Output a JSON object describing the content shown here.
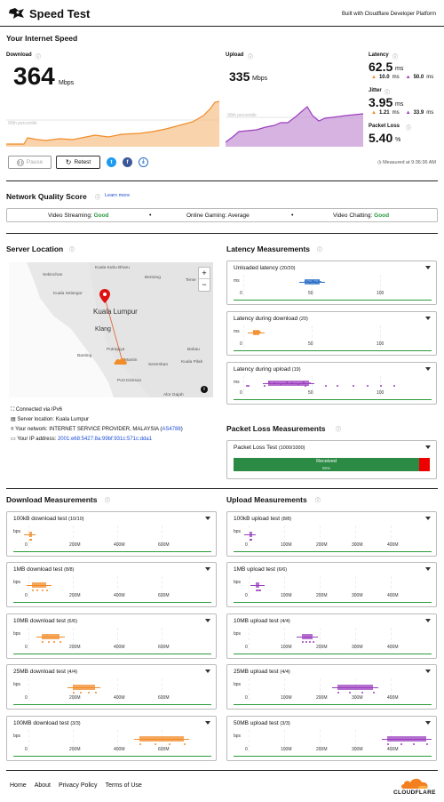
{
  "app": {
    "title": "Speed Test",
    "built_with": "Built with Cloudflare Developer Platform"
  },
  "speed": {
    "section_title": "Your Internet Speed",
    "download_label": "Download",
    "download_value": "364",
    "download_unit": "Mbps",
    "upload_label": "Upload",
    "upload_value": "335",
    "upload_unit": "Mbps",
    "percentile_label": "90th percentile"
  },
  "latency": {
    "label": "Latency",
    "value": "62.5",
    "unit": "ms",
    "down": "10.0",
    "up": "50.0",
    "down_unit": "ms",
    "up_unit": "ms"
  },
  "jitter": {
    "label": "Jitter",
    "value": "3.95",
    "unit": "ms",
    "down": "1.21",
    "up": "33.9",
    "down_unit": "ms",
    "up_unit": "ms"
  },
  "packet_loss": {
    "label": "Packet Loss",
    "value": "5.40",
    "unit": "%"
  },
  "actions": {
    "pause": "Pause",
    "retest": "Retest",
    "measured_at": "Measured at 9:36:36 AM"
  },
  "nqs": {
    "title": "Network Quality Score",
    "learn_more": "Learn more",
    "streaming_label": "Video Streaming:",
    "streaming_value": "Good",
    "gaming_label": "Online Gaming:",
    "gaming_value": "Average",
    "chatting_label": "Video Chatting:",
    "chatting_value": "Good"
  },
  "server": {
    "title": "Server Location",
    "connected": "Connected via IPv6",
    "location": "Server location: Kuala Lumpur",
    "network_prefix": "Your network: INTERNET SERVICE PROVIDER, MALAYSIA (",
    "asn": "AS4788",
    "network_suffix": ")",
    "ip_prefix": "Your IP address:",
    "ip": "2001:e68:5427:8a:99bf:931c:571c:dda1"
  },
  "map": {
    "labels": [
      "Kuala Kubu Bharu",
      "Sekinchan",
      "Bentong",
      "Kuala Selangor",
      "Teme",
      "Kuala Lumpur",
      "Klang",
      "Bahau",
      "Putrajaya",
      "Mantin",
      "Banting",
      "Seremban",
      "Kuala Pilah",
      "Port Dickson",
      "Alor Gajah"
    ],
    "zoom_in": "+",
    "zoom_out": "−",
    "info": "i"
  },
  "latency_meas": {
    "title": "Latency Measurements",
    "cards": [
      {
        "title": "Unloaded latency",
        "count": "(20/20)"
      },
      {
        "title": "Latency during download",
        "count": "(20)"
      },
      {
        "title": "Latency during upload",
        "count": "(19)"
      }
    ],
    "unit": "ms",
    "ticks": [
      "0",
      "50",
      "100"
    ]
  },
  "packet_meas": {
    "title": "Packet Loss Measurements",
    "card_title": "Packet Loss Test",
    "count": "(1000/1000)",
    "received_label": "Received",
    "received_pct": "95%"
  },
  "download_meas": {
    "title": "Download Measurements",
    "unit": "bps",
    "ticks": [
      "0",
      "200M",
      "400M",
      "600M"
    ],
    "cards": [
      {
        "title": "100kB download test",
        "count": "(10/10)"
      },
      {
        "title": "1MB download test",
        "count": "(8/8)"
      },
      {
        "title": "10MB download test",
        "count": "(6/6)"
      },
      {
        "title": "25MB download test",
        "count": "(4/4)"
      },
      {
        "title": "100MB download test",
        "count": "(3/3)"
      }
    ]
  },
  "upload_meas": {
    "title": "Upload Measurements",
    "unit": "bps",
    "ticks": [
      "0",
      "100M",
      "200M",
      "300M",
      "400M"
    ],
    "cards": [
      {
        "title": "100kB upload test",
        "count": "(8/8)"
      },
      {
        "title": "1MB upload test",
        "count": "(6/6)"
      },
      {
        "title": "10MB upload test",
        "count": "(4/4)"
      },
      {
        "title": "25MB upload test",
        "count": "(4/4)"
      },
      {
        "title": "50MB upload test",
        "count": "(3/3)"
      }
    ]
  },
  "footer": {
    "home": "Home",
    "about": "About",
    "privacy": "Privacy Policy",
    "terms": "Terms of Use",
    "logo_text": "CLOUDFLARE"
  },
  "colors": {
    "download": "#f28c28",
    "upload": "#9b3fbf",
    "latency": "#2a6fc7",
    "good": "#2c9a3d",
    "received": "#2b8a44",
    "lost": "#e00"
  }
}
